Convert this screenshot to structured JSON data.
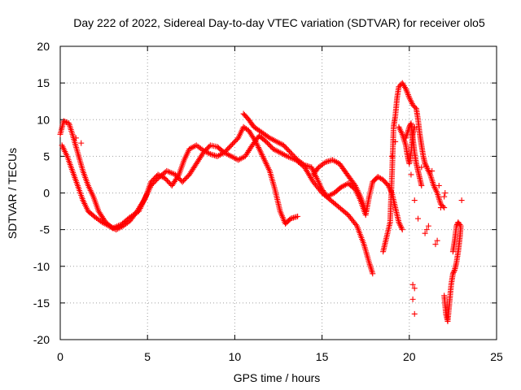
{
  "chart_data": {
    "type": "scatter",
    "title": "Day 222 of 2022, Sidereal Day-to-day VTEC variation (SDTVAR) for receiver olo5",
    "xlabel": "GPS time / hours",
    "ylabel": "SDTVAR / TECUs",
    "xlim": [
      0,
      25
    ],
    "ylim": [
      -20,
      20
    ],
    "xticks": [
      0,
      5,
      10,
      15,
      20,
      25
    ],
    "yticks": [
      -20,
      -15,
      -10,
      -5,
      0,
      5,
      10,
      15,
      20
    ],
    "xtick_labels": [
      "0",
      "5",
      "10",
      "15",
      "20",
      "25"
    ],
    "ytick_labels": [
      "-20",
      "-15",
      "-10",
      "-5",
      "0",
      "5",
      "10",
      "15",
      "20"
    ],
    "grid": true,
    "marker": "+",
    "color": "#ff0000",
    "series": [
      {
        "name": "olo5",
        "tracks": [
          [
            [
              0.0,
              8.0
            ],
            [
              0.2,
              9.8
            ],
            [
              0.5,
              9.5
            ],
            [
              0.7,
              8.0
            ],
            [
              1.0,
              5.5
            ],
            [
              1.3,
              3.0
            ],
            [
              1.6,
              1.0
            ],
            [
              1.9,
              -0.5
            ],
            [
              2.2,
              -2.5
            ],
            [
              2.6,
              -4.0
            ],
            [
              3.0,
              -4.8
            ],
            [
              3.5,
              -4.3
            ],
            [
              4.0,
              -3.3
            ],
            [
              4.5,
              -2.5
            ],
            [
              4.9,
              -0.5
            ],
            [
              5.2,
              1.5
            ],
            [
              5.6,
              2.5
            ],
            [
              6.0,
              2.0
            ],
            [
              6.4,
              1.0
            ],
            [
              6.8,
              2.5
            ],
            [
              7.1,
              4.5
            ],
            [
              7.4,
              6.0
            ],
            [
              7.8,
              6.5
            ],
            [
              8.2,
              5.8
            ],
            [
              8.6,
              5.3
            ],
            [
              9.0,
              5.0
            ],
            [
              9.4,
              5.5
            ],
            [
              9.8,
              6.5
            ],
            [
              10.2,
              7.5
            ],
            [
              10.5,
              9.0
            ],
            [
              10.8,
              8.5
            ],
            [
              11.2,
              7.0
            ],
            [
              11.6,
              5.0
            ],
            [
              12.0,
              3.0
            ],
            [
              12.3,
              0.5
            ],
            [
              12.6,
              -2.5
            ],
            [
              12.9,
              -4.2
            ],
            [
              13.2,
              -3.5
            ],
            [
              13.6,
              -3.2
            ]
          ],
          [
            [
              0.1,
              6.5
            ],
            [
              0.4,
              5.0
            ],
            [
              0.7,
              3.0
            ],
            [
              1.0,
              1.0
            ],
            [
              1.3,
              -1.0
            ],
            [
              1.6,
              -2.5
            ],
            [
              2.0,
              -3.3
            ],
            [
              2.4,
              -4.0
            ],
            [
              2.8,
              -4.5
            ],
            [
              3.2,
              -5.0
            ],
            [
              3.6,
              -4.5
            ],
            [
              4.0,
              -3.8
            ],
            [
              4.4,
              -2.5
            ],
            [
              4.8,
              -1.0
            ],
            [
              5.2,
              1.0
            ],
            [
              5.6,
              2.0
            ],
            [
              6.1,
              3.0
            ],
            [
              6.6,
              2.5
            ],
            [
              7.0,
              1.5
            ],
            [
              7.4,
              2.5
            ],
            [
              7.8,
              4.0
            ],
            [
              8.2,
              5.5
            ],
            [
              8.6,
              6.5
            ],
            [
              9.0,
              6.3
            ],
            [
              9.4,
              5.5
            ],
            [
              9.8,
              5.0
            ],
            [
              10.2,
              4.5
            ],
            [
              10.6,
              5.0
            ],
            [
              11.0,
              6.5
            ],
            [
              11.4,
              7.8
            ],
            [
              11.8,
              7.0
            ],
            [
              12.2,
              6.0
            ],
            [
              12.6,
              5.5
            ],
            [
              13.0,
              5.0
            ],
            [
              13.5,
              4.5
            ],
            [
              14.0,
              3.5
            ],
            [
              14.5,
              1.5
            ],
            [
              15.0,
              0.0
            ],
            [
              15.5,
              -1.0
            ],
            [
              16.0,
              -2.0
            ],
            [
              16.5,
              -3.0
            ],
            [
              17.0,
              -4.5
            ],
            [
              17.4,
              -7.0
            ],
            [
              17.7,
              -9.5
            ],
            [
              17.9,
              -11.0
            ]
          ],
          [
            [
              10.5,
              10.8
            ],
            [
              10.8,
              10.0
            ],
            [
              11.1,
              9.0
            ],
            [
              11.4,
              8.5
            ],
            [
              11.7,
              8.0
            ],
            [
              12.0,
              7.5
            ],
            [
              12.4,
              7.0
            ],
            [
              12.8,
              6.5
            ],
            [
              13.2,
              5.5
            ],
            [
              13.6,
              4.5
            ],
            [
              14.0,
              3.8
            ],
            [
              14.4,
              3.5
            ],
            [
              14.7,
              2.0
            ],
            [
              15.0,
              0.5
            ],
            [
              15.3,
              -0.5
            ],
            [
              15.7,
              0.0
            ],
            [
              16.1,
              0.8
            ],
            [
              16.5,
              1.3
            ],
            [
              16.9,
              0.5
            ],
            [
              17.2,
              -1.0
            ],
            [
              17.5,
              -3.0
            ],
            [
              17.7,
              -0.5
            ],
            [
              17.9,
              1.5
            ],
            [
              18.2,
              2.2
            ],
            [
              18.5,
              1.8
            ],
            [
              18.8,
              1.0
            ],
            [
              19.0,
              0.0
            ],
            [
              19.2,
              -2.0
            ],
            [
              19.4,
              -4.0
            ],
            [
              19.6,
              -5.0
            ]
          ],
          [
            [
              14.5,
              2.5
            ],
            [
              14.8,
              3.5
            ],
            [
              15.2,
              4.2
            ],
            [
              15.6,
              4.5
            ],
            [
              16.0,
              4.0
            ],
            [
              16.3,
              3.0
            ],
            [
              16.6,
              2.0
            ],
            [
              16.9,
              1.0
            ],
            [
              17.2,
              -0.5
            ],
            [
              17.5,
              -2.5
            ]
          ],
          [
            [
              18.5,
              -8.0
            ],
            [
              18.7,
              -6.0
            ],
            [
              18.9,
              -4.0
            ],
            [
              19.0,
              2.0
            ],
            [
              19.1,
              9.0
            ],
            [
              19.2,
              10.5
            ],
            [
              19.3,
              13.0
            ],
            [
              19.4,
              14.5
            ],
            [
              19.6,
              15.0
            ],
            [
              19.8,
              14.2
            ],
            [
              20.0,
              13.0
            ],
            [
              20.2,
              12.0
            ],
            [
              20.4,
              11.5
            ],
            [
              20.5,
              10.0
            ],
            [
              20.6,
              8.0
            ],
            [
              20.7,
              6.5
            ],
            [
              20.8,
              5.0
            ],
            [
              20.9,
              4.0
            ],
            [
              21.0,
              3.5
            ],
            [
              21.2,
              2.5
            ],
            [
              21.4,
              1.0
            ],
            [
              21.6,
              0.0
            ],
            [
              21.8,
              -1.5
            ],
            [
              22.0,
              -2.0
            ]
          ],
          [
            [
              19.4,
              9.0
            ],
            [
              19.6,
              8.0
            ],
            [
              19.8,
              6.5
            ],
            [
              19.9,
              5.0
            ],
            [
              20.0,
              4.0
            ],
            [
              20.1,
              5.5
            ],
            [
              20.2,
              8.0
            ],
            [
              20.3,
              9.0
            ]
          ],
          [
            [
              19.8,
              7.5
            ],
            [
              20.0,
              9.0
            ],
            [
              20.1,
              9.5
            ],
            [
              20.2,
              7.5
            ],
            [
              20.3,
              5.5
            ],
            [
              20.4,
              4.0
            ],
            [
              20.5,
              3.0
            ],
            [
              20.6,
              2.0
            ],
            [
              20.7,
              1.0
            ]
          ],
          [
            [
              22.0,
              -14.0
            ],
            [
              22.1,
              -16.5
            ],
            [
              22.2,
              -17.5
            ],
            [
              22.3,
              -15.0
            ],
            [
              22.4,
              -12.5
            ],
            [
              22.5,
              -11.0
            ],
            [
              22.6,
              -10.5
            ],
            [
              22.7,
              -9.5
            ],
            [
              22.8,
              -8.0
            ],
            [
              22.9,
              -6.0
            ],
            [
              22.95,
              -4.5
            ],
            [
              22.8,
              -4.0
            ],
            [
              22.7,
              -4.5
            ],
            [
              22.6,
              -6.5
            ],
            [
              22.5,
              -8.0
            ]
          ]
        ],
        "scattered": [
          [
            0.9,
            7.5
          ],
          [
            1.2,
            6.8
          ],
          [
            20.1,
            2.5
          ],
          [
            20.3,
            -1.0
          ],
          [
            20.5,
            -3.5
          ],
          [
            20.2,
            -12.5
          ],
          [
            20.3,
            -13.0
          ],
          [
            20.2,
            -14.5
          ],
          [
            20.3,
            -16.5
          ],
          [
            20.9,
            -5.5
          ],
          [
            21.0,
            -5.0
          ],
          [
            21.1,
            -4.5
          ],
          [
            21.5,
            -7.0
          ],
          [
            21.6,
            -6.5
          ],
          [
            21.8,
            -2.0
          ],
          [
            22.0,
            -0.5
          ],
          [
            22.05,
            0.0
          ],
          [
            23.0,
            -1.0
          ],
          [
            21.7,
            1.0
          ],
          [
            21.3,
            3.0
          ],
          [
            20.7,
            3.5
          ],
          [
            19.2,
            7.0
          ],
          [
            19.0,
            5.0
          ]
        ]
      }
    ]
  }
}
